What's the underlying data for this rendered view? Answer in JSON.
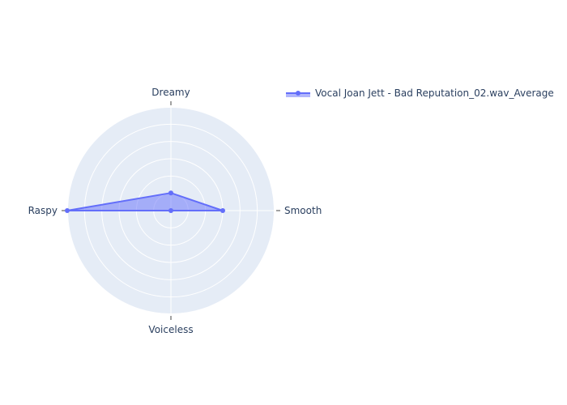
{
  "chart_data": {
    "type": "radar",
    "title": "",
    "axes": [
      "Dreamy",
      "Smooth",
      "Voiceless",
      "Raspy"
    ],
    "radial_range": [
      0,
      1
    ],
    "grid": true,
    "legend_position": "top-right",
    "series": [
      {
        "name": "Vocal Joan Jett - Bad Reputation_02.wav_Average",
        "values": [
          0.17,
          0.5,
          0.0,
          1.0
        ],
        "color": "#636efa",
        "fill": "toself"
      }
    ]
  },
  "colors": {
    "polar_bg": "#e5ecf6",
    "grid": "#ffffff",
    "text": "#2a3f5f",
    "series": "#636efa"
  }
}
